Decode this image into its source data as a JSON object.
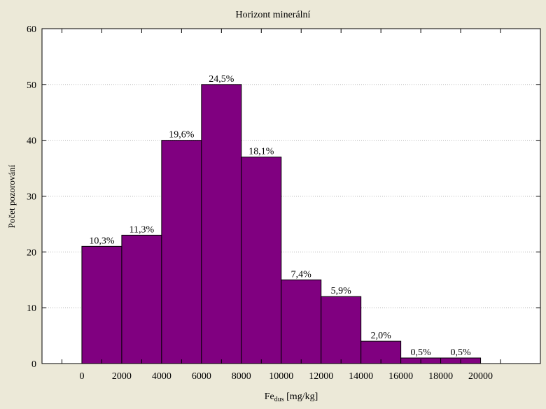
{
  "chart_data": {
    "type": "bar",
    "title": "Horizont minerální",
    "ylabel": "Počet pozorování",
    "xlabel_main": "Fe",
    "xlabel_sub": "dus",
    "xlabel_rest": " [mg/kg]",
    "bin_edges": [
      0,
      2000,
      4000,
      6000,
      8000,
      10000,
      12000,
      14000,
      16000,
      18000,
      20000
    ],
    "values": [
      21,
      23,
      40,
      50,
      37,
      15,
      12,
      4,
      1,
      1
    ],
    "data_labels": [
      "10,3%",
      "11,3%",
      "19,6%",
      "24,5%",
      "18,1%",
      "7,4%",
      "5,9%",
      "2,0%",
      "0,5%",
      "0,5%"
    ],
    "xlim": [
      -2000,
      23000
    ],
    "ylim": [
      0,
      60
    ],
    "yticks": [
      "0",
      "10",
      "20",
      "30",
      "40",
      "50",
      "60"
    ],
    "xticks": [
      "0",
      "2000",
      "4000",
      "6000",
      "8000",
      "10000",
      "12000",
      "14000",
      "16000",
      "18000",
      "20000"
    ],
    "grid": true,
    "legend": "none",
    "colors": {
      "bar_fill": "#800080",
      "bar_stroke": "#000000",
      "background": "#ece9d8",
      "plot_background": "#ffffff",
      "grid": "#b4b4b4"
    }
  }
}
